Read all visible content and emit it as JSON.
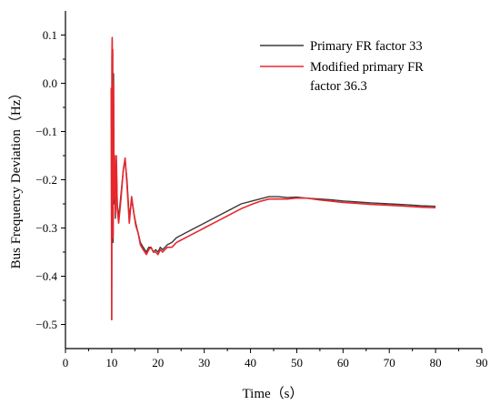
{
  "chart_data": {
    "type": "line",
    "title": "",
    "xlabel": "Time（s）",
    "ylabel": "Bus Frequency Deviation（Hz）",
    "xlim": [
      0,
      90
    ],
    "ylim": [
      -0.55,
      0.15
    ],
    "xticks": [
      0,
      10,
      20,
      30,
      40,
      50,
      60,
      70,
      80,
      90
    ],
    "yticks": [
      0.1,
      0.0,
      -0.1,
      -0.2,
      -0.3,
      -0.4,
      -0.5
    ],
    "xtick_labels": [
      "0",
      "10",
      "20",
      "30",
      "40",
      "50",
      "60",
      "70",
      "80",
      "90"
    ],
    "ytick_labels": [
      "0.1",
      "0.0",
      "−0.1",
      "−0.2",
      "−0.3",
      "−0.4",
      "−0.5"
    ],
    "grid": false,
    "legend_position": "top-right",
    "legend": {
      "line1": "Primary FR factor 33",
      "line2a": "Modified primary FR",
      "line2b": "factor 36.3"
    },
    "series": [
      {
        "name": "Primary FR factor 33",
        "color": "#3a3a3a",
        "x": [
          9.9,
          10.0,
          10.05,
          10.1,
          10.15,
          10.2,
          10.3,
          10.4,
          10.5,
          10.6,
          10.8,
          11.0,
          11.2,
          11.5,
          12.0,
          12.5,
          12.9,
          13.3,
          13.8,
          14.3,
          14.8,
          15.2,
          15.7,
          16.2,
          16.8,
          17.5,
          18.0,
          18.5,
          19.0,
          19.5,
          20.0,
          20.5,
          21.0,
          21.5,
          22.0,
          23.0,
          24.0,
          25.0,
          26.0,
          27.0,
          28.0,
          29.0,
          30.0,
          32.0,
          34.0,
          36.0,
          38.0,
          40.0,
          42.0,
          44.0,
          46.0,
          48.0,
          50.0,
          52.0,
          55.0,
          58.0,
          60.0,
          63.0,
          66.0,
          70.0,
          74.0,
          77.0,
          80.0
        ],
        "y": [
          -0.01,
          -0.49,
          0.05,
          0.09,
          -0.3,
          0.07,
          -0.33,
          0.02,
          -0.25,
          -0.15,
          -0.28,
          -0.16,
          -0.25,
          -0.28,
          -0.23,
          -0.18,
          -0.16,
          -0.2,
          -0.28,
          -0.24,
          -0.27,
          -0.29,
          -0.31,
          -0.33,
          -0.34,
          -0.35,
          -0.34,
          -0.34,
          -0.35,
          -0.345,
          -0.35,
          -0.34,
          -0.345,
          -0.34,
          -0.335,
          -0.33,
          -0.32,
          -0.315,
          -0.31,
          -0.305,
          -0.3,
          -0.295,
          -0.29,
          -0.28,
          -0.27,
          -0.26,
          -0.25,
          -0.245,
          -0.24,
          -0.235,
          -0.235,
          -0.237,
          -0.236,
          -0.238,
          -0.24,
          -0.242,
          -0.244,
          -0.246,
          -0.248,
          -0.25,
          -0.252,
          -0.254,
          -0.255
        ]
      },
      {
        "name": "Modified primary FR factor 36.3",
        "color": "#e8262b",
        "x": [
          9.9,
          10.0,
          10.05,
          10.1,
          10.15,
          10.2,
          10.3,
          10.4,
          10.5,
          10.6,
          10.8,
          11.0,
          11.2,
          11.5,
          12.0,
          12.5,
          12.9,
          13.3,
          13.8,
          14.3,
          14.8,
          15.2,
          15.7,
          16.2,
          16.8,
          17.5,
          18.0,
          18.5,
          19.0,
          19.5,
          20.0,
          20.5,
          21.0,
          21.5,
          22.0,
          23.0,
          24.0,
          25.0,
          26.0,
          27.0,
          28.0,
          29.0,
          30.0,
          32.0,
          34.0,
          36.0,
          38.0,
          40.0,
          42.0,
          44.0,
          46.0,
          48.0,
          50.0,
          52.0,
          55.0,
          58.0,
          60.0,
          63.0,
          66.0,
          70.0,
          74.0,
          77.0,
          80.0
        ],
        "y": [
          -0.01,
          -0.49,
          0.06,
          0.095,
          -0.32,
          0.07,
          -0.32,
          0.0,
          -0.24,
          -0.15,
          -0.27,
          -0.15,
          -0.26,
          -0.29,
          -0.24,
          -0.18,
          -0.155,
          -0.21,
          -0.29,
          -0.235,
          -0.27,
          -0.295,
          -0.31,
          -0.335,
          -0.345,
          -0.355,
          -0.345,
          -0.34,
          -0.35,
          -0.35,
          -0.355,
          -0.345,
          -0.35,
          -0.345,
          -0.34,
          -0.34,
          -0.33,
          -0.325,
          -0.32,
          -0.315,
          -0.31,
          -0.305,
          -0.3,
          -0.29,
          -0.28,
          -0.27,
          -0.26,
          -0.252,
          -0.245,
          -0.24,
          -0.24,
          -0.24,
          -0.238,
          -0.238,
          -0.242,
          -0.245,
          -0.247,
          -0.249,
          -0.251,
          -0.253,
          -0.255,
          -0.257,
          -0.258
        ]
      }
    ]
  }
}
